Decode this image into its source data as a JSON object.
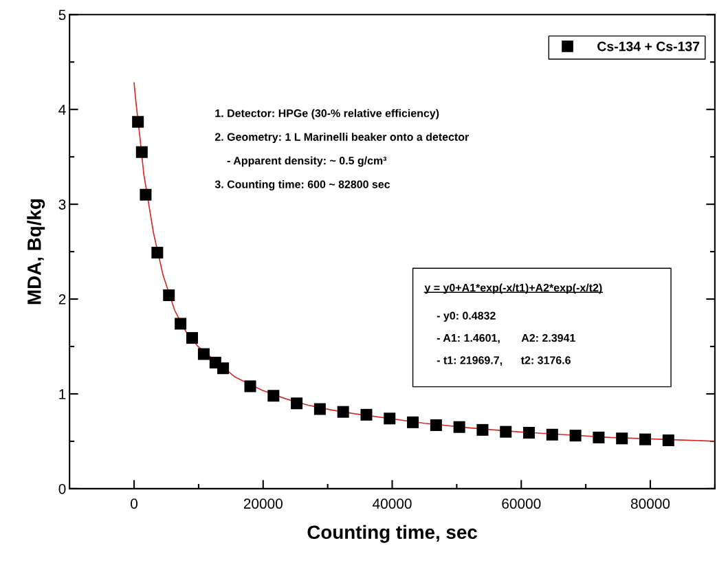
{
  "chart_data": {
    "type": "scatter",
    "xlabel": "Counting time, sec",
    "ylabel": "MDA, Bq/kg",
    "xlim": [
      -10000,
      90000
    ],
    "xticks": [
      0,
      20000,
      40000,
      60000,
      80000
    ],
    "ylim": [
      0,
      5
    ],
    "yticks": [
      0,
      1,
      2,
      3,
      4,
      5
    ],
    "grid": false,
    "legend": "top right",
    "marker": "square",
    "series": [
      {
        "name": "Cs-134 + Cs-137",
        "color": "#000000",
        "x": [
          600,
          1200,
          1800,
          3600,
          5400,
          7200,
          9000,
          10800,
          12600,
          13800,
          18000,
          21600,
          25200,
          28800,
          32400,
          36000,
          39600,
          43200,
          46800,
          50400,
          54000,
          57600,
          61200,
          64800,
          68400,
          72000,
          75600,
          79200,
          82800
        ],
        "values": [
          3.87,
          3.55,
          3.1,
          2.49,
          2.04,
          1.74,
          1.59,
          1.42,
          1.33,
          1.27,
          1.08,
          0.98,
          0.9,
          0.84,
          0.81,
          0.78,
          0.74,
          0.7,
          0.67,
          0.65,
          0.62,
          0.6,
          0.59,
          0.57,
          0.56,
          0.54,
          0.53,
          0.52,
          0.51
        ]
      },
      {
        "type": "line",
        "color": "#d42a2a",
        "marker": "none",
        "line_style": "solid",
        "x": [
          0,
          300,
          900,
          1500,
          2400,
          3000,
          4500,
          6300,
          8100,
          9900,
          15600,
          19800,
          23400,
          27000,
          30600,
          34200,
          45000,
          52200,
          59400,
          66600,
          73800,
          86400,
          90000
        ],
        "values": [
          4.28,
          4.07,
          3.71,
          3.32,
          2.95,
          2.7,
          2.25,
          1.88,
          1.65,
          1.5,
          1.18,
          1.04,
          0.95,
          0.88,
          0.83,
          0.79,
          0.69,
          0.64,
          0.6,
          0.57,
          0.54,
          0.51,
          0.5
        ]
      }
    ],
    "annotations": [
      "1. Detector: HPGe (30-% relative efficiency)",
      "2. Geometry: 1 L Marinelli beaker onto a detector",
      "    - Apparent density: ~ 0.5 g/cm³",
      "3. Counting time: 600 ~ 82800 sec",
      "y = y0+A1*exp(-x/t1)+A2*exp(-x/t2)",
      "    - y0: 0.4832",
      "    - A1: 1.4601,       A2: 2.3941",
      "    - t1: 21969.7,      t2: 3176.6"
    ]
  }
}
